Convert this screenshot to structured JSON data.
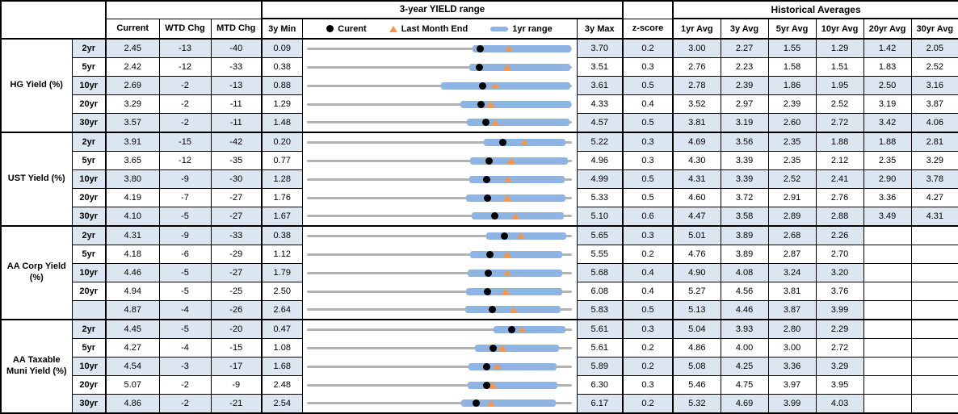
{
  "header": {
    "hist_title": "Historical Averages"
  },
  "colors": {
    "row_alt": "#dce6f1",
    "range_bar": "#8eb4e3",
    "current_marker": "#000000",
    "last_month_end_marker": "#f79646",
    "track": "#b3b3b3"
  },
  "chart_data": {
    "type": "table",
    "title": "3-year YIELD range",
    "legend": [
      "Curent",
      "Last Month End",
      "1yr range"
    ],
    "columns": [
      "Current",
      "WTD Chg",
      "MTD Chg",
      "3y Min",
      "3y Max",
      "z-score",
      "1yr Avg",
      "3y Avg",
      "5yr Avg",
      "10yr Avg",
      "20yr Avg",
      "30yr Avg"
    ],
    "groups": [
      {
        "label": "HG Yield (%)",
        "rows": [
          {
            "tenor": "2yr",
            "vals": [
              "2.45",
              "-13",
              "-40",
              "0.09",
              "3.70",
              "0.2",
              "3.00",
              "2.27",
              "1.55",
              "1.29",
              "1.42",
              "2.05"
            ],
            "r1": [
              2.35,
              3.7
            ]
          },
          {
            "tenor": "5yr",
            "vals": [
              "2.42",
              "-12",
              "-33",
              "0.38",
              "3.51",
              "0.3",
              "2.76",
              "2.23",
              "1.58",
              "1.51",
              "1.83",
              "2.52"
            ],
            "r1": [
              2.3,
              3.5
            ]
          },
          {
            "tenor": "10yr",
            "vals": [
              "2.69",
              "-2",
              "-13",
              "0.88",
              "3.61",
              "0.5",
              "2.78",
              "2.39",
              "1.86",
              "1.95",
              "2.50",
              "3.16"
            ],
            "r1": [
              2.26,
              3.6
            ]
          },
          {
            "tenor": "20yr",
            "vals": [
              "3.29",
              "-2",
              "-11",
              "1.29",
              "4.33",
              "0.4",
              "3.52",
              "2.97",
              "2.39",
              "2.52",
              "3.19",
              "3.87"
            ],
            "r1": [
              3.05,
              4.33
            ]
          },
          {
            "tenor": "30yr",
            "vals": [
              "3.57",
              "-2",
              "-11",
              "1.48",
              "4.57",
              "0.5",
              "3.81",
              "3.19",
              "2.60",
              "2.72",
              "3.42",
              "4.06"
            ],
            "r1": [
              3.35,
              4.55
            ]
          }
        ]
      },
      {
        "label": "UST Yield (%)",
        "rows": [
          {
            "tenor": "2yr",
            "vals": [
              "3.91",
              "-15",
              "-42",
              "0.20",
              "5.22",
              "0.3",
              "4.69",
              "3.56",
              "2.35",
              "1.88",
              "1.88",
              "2.81"
            ],
            "r1": [
              3.55,
              5.1
            ]
          },
          {
            "tenor": "5yr",
            "vals": [
              "3.65",
              "-12",
              "-35",
              "0.77",
              "4.96",
              "0.3",
              "4.30",
              "3.39",
              "2.35",
              "2.12",
              "2.35",
              "3.29"
            ],
            "r1": [
              3.35,
              4.9
            ]
          },
          {
            "tenor": "10yr",
            "vals": [
              "3.80",
              "-9",
              "-30",
              "1.28",
              "4.99",
              "0.5",
              "4.31",
              "3.39",
              "2.52",
              "2.41",
              "2.90",
              "3.78"
            ],
            "r1": [
              3.55,
              4.9
            ]
          },
          {
            "tenor": "20yr",
            "vals": [
              "4.19",
              "-7",
              "-27",
              "1.76",
              "5.33",
              "0.5",
              "4.60",
              "3.72",
              "2.91",
              "2.76",
              "3.36",
              "4.27"
            ],
            "r1": [
              3.9,
              5.25
            ]
          },
          {
            "tenor": "30yr",
            "vals": [
              "4.10",
              "-5",
              "-27",
              "1.67",
              "5.10",
              "0.6",
              "4.47",
              "3.58",
              "2.89",
              "2.88",
              "3.49",
              "4.31"
            ],
            "r1": [
              3.8,
              5.0
            ]
          }
        ]
      },
      {
        "label": "AA Corp Yield (%)",
        "rows": [
          {
            "tenor": "2yr",
            "vals": [
              "4.31",
              "-9",
              "-33",
              "0.38",
              "5.65",
              "0.3",
              "5.01",
              "3.89",
              "2.68",
              "2.26",
              "",
              ""
            ],
            "r1": [
              3.95,
              5.55
            ]
          },
          {
            "tenor": "5yr",
            "vals": [
              "4.18",
              "-6",
              "-29",
              "1.12",
              "5.55",
              "0.2",
              "4.76",
              "3.89",
              "2.87",
              "2.70",
              "",
              ""
            ],
            "r1": [
              3.85,
              5.4
            ]
          },
          {
            "tenor": "10yr",
            "vals": [
              "4.46",
              "-5",
              "-27",
              "1.79",
              "5.68",
              "0.4",
              "4.90",
              "4.08",
              "3.24",
              "3.20",
              "",
              ""
            ],
            "r1": [
              4.15,
              5.55
            ]
          },
          {
            "tenor": "20yr",
            "vals": [
              "4.94",
              "-5",
              "-25",
              "2.50",
              "6.08",
              "0.4",
              "5.27",
              "4.56",
              "3.81",
              "3.76",
              "",
              ""
            ],
            "r1": [
              4.65,
              5.95
            ]
          },
          {
            "tenor": "",
            "vals": [
              "4.87",
              "-4",
              "-26",
              "2.64",
              "5.83",
              "0.5",
              "5.13",
              "4.46",
              "3.87",
              "3.99",
              "",
              ""
            ],
            "r1": [
              4.55,
              5.7
            ]
          }
        ]
      },
      {
        "label": "AA Taxable Muni Yield (%)",
        "rows": [
          {
            "tenor": "2yr",
            "vals": [
              "4.45",
              "-5",
              "-20",
              "0.47",
              "5.61",
              "0.3",
              "5.04",
              "3.93",
              "2.80",
              "2.29",
              "",
              ""
            ],
            "r1": [
              4.1,
              5.5
            ]
          },
          {
            "tenor": "5yr",
            "vals": [
              "4.27",
              "-4",
              "-15",
              "1.08",
              "5.61",
              "0.2",
              "4.86",
              "4.00",
              "3.00",
              "2.72",
              "",
              ""
            ],
            "r1": [
              3.95,
              5.4
            ]
          },
          {
            "tenor": "10yr",
            "vals": [
              "4.54",
              "-3",
              "-17",
              "1.68",
              "5.89",
              "0.2",
              "5.08",
              "4.25",
              "3.36",
              "3.29",
              "",
              ""
            ],
            "r1": [
              4.25,
              5.65
            ]
          },
          {
            "tenor": "20yr",
            "vals": [
              "5.07",
              "-2",
              "-9",
              "2.48",
              "6.30",
              "0.3",
              "5.46",
              "4.75",
              "3.97",
              "3.95",
              "",
              ""
            ],
            "r1": [
              4.8,
              6.1
            ]
          },
          {
            "tenor": "30yr",
            "vals": [
              "4.86",
              "-2",
              "-21",
              "2.54",
              "6.17",
              "0.2",
              "5.32",
              "4.69",
              "3.99",
              "4.03",
              "",
              ""
            ],
            "r1": [
              4.65,
              5.95
            ]
          }
        ]
      }
    ]
  }
}
